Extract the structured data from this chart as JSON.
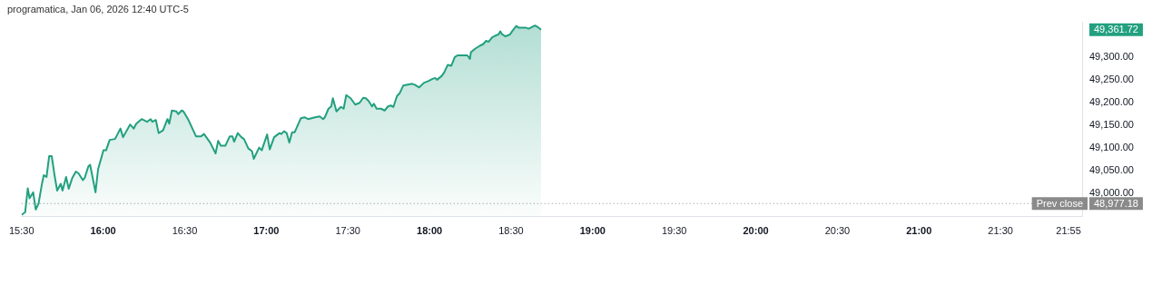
{
  "chart_data": {
    "type": "area",
    "title": "programatica, Jan 06, 2026 12:40 UTC-5",
    "x": [
      15.5,
      15.522,
      15.538,
      15.549,
      15.571,
      15.587,
      15.604,
      15.625,
      15.636,
      15.653,
      15.669,
      15.685,
      15.702,
      15.718,
      15.74,
      15.751,
      15.773,
      15.789,
      15.811,
      15.833,
      15.849,
      15.876,
      15.887,
      15.909,
      15.92,
      15.936,
      15.953,
      15.969,
      16.002,
      16.018,
      16.04,
      16.073,
      16.106,
      16.122,
      16.165,
      16.187,
      16.203,
      16.236,
      16.269,
      16.291,
      16.302,
      16.323,
      16.34,
      16.367,
      16.394,
      16.405,
      16.421,
      16.449,
      16.46,
      16.481,
      16.492,
      16.52,
      16.569,
      16.601,
      16.618,
      16.656,
      16.689,
      16.705,
      16.721,
      16.749,
      16.776,
      16.792,
      16.803,
      16.825,
      16.847,
      16.863,
      16.89,
      16.912,
      16.923,
      16.956,
      16.972,
      17.005,
      17.021,
      17.048,
      17.081,
      17.092,
      17.108,
      17.125,
      17.141,
      17.158,
      17.174,
      17.212,
      17.234,
      17.256,
      17.299,
      17.327,
      17.348,
      17.359,
      17.381,
      17.398,
      17.408,
      17.43,
      17.457,
      17.474,
      17.49,
      17.517,
      17.545,
      17.572,
      17.594,
      17.61,
      17.627,
      17.648,
      17.659,
      17.676,
      17.703,
      17.725,
      17.746,
      17.763,
      17.779,
      17.801,
      17.817,
      17.839,
      17.866,
      17.894,
      17.91,
      17.937,
      17.965,
      17.992,
      18.019,
      18.035,
      18.046,
      18.074,
      18.09,
      18.112,
      18.134,
      18.155,
      18.172,
      18.194,
      18.215,
      18.232,
      18.248,
      18.254,
      18.281,
      18.308,
      18.33,
      18.346,
      18.363,
      18.384,
      18.406,
      18.423,
      18.434,
      18.444,
      18.466,
      18.493,
      18.51,
      18.532,
      18.548,
      18.564,
      18.592,
      18.608,
      18.63,
      18.646,
      18.662,
      18.684
    ],
    "series": [
      {
        "color": "#22a07f",
        "values": [
          48952,
          48958,
          49011,
          48989,
          49002,
          48964,
          48977,
          49021,
          49040,
          49036,
          49082,
          49082,
          49040,
          49006,
          49021,
          49006,
          49036,
          49010,
          49034,
          49048,
          49044,
          49029,
          49034,
          49059,
          49063,
          49034,
          49002,
          49053,
          49095,
          49095,
          49118,
          49120,
          49143,
          49124,
          49152,
          49143,
          49154,
          49164,
          49158,
          49164,
          49158,
          49162,
          49133,
          49139,
          49164,
          49154,
          49183,
          49181,
          49175,
          49183,
          49181,
          49164,
          49126,
          49126,
          49131,
          49112,
          49088,
          49116,
          49105,
          49105,
          49126,
          49126,
          49114,
          49133,
          49124,
          49120,
          49099,
          49093,
          49076,
          49101,
          49095,
          49130,
          49097,
          49124,
          49133,
          49131,
          49137,
          49133,
          49112,
          49135,
          49135,
          49166,
          49168,
          49164,
          49168,
          49170,
          49164,
          49168,
          49187,
          49192,
          49210,
          49181,
          49191,
          49187,
          49217,
          49210,
          49196,
          49200,
          49211,
          49210,
          49204,
          49192,
          49198,
          49187,
          49187,
          49183,
          49192,
          49194,
          49191,
          49215,
          49221,
          49238,
          49240,
          49242,
          49240,
          49234,
          49244,
          49248,
          49253,
          49255,
          49251,
          49259,
          49267,
          49284,
          49282,
          49301,
          49305,
          49305,
          49305,
          49305,
          49297,
          49312,
          49320,
          49326,
          49330,
          49337,
          49335,
          49345,
          49349,
          49351,
          49358,
          49352,
          49347,
          49351,
          49360,
          49370,
          49366,
          49366,
          49366,
          49364,
          49368,
          49371,
          49368,
          49361.72
        ]
      }
    ],
    "xlim": [
      15.5,
      22.0
    ],
    "xticks": [
      {
        "value": 15.5,
        "label": "15:30"
      },
      {
        "value": 16,
        "label": "16:00"
      },
      {
        "value": 16.5,
        "label": "16:30"
      },
      {
        "value": 17,
        "label": "17:00"
      },
      {
        "value": 17.5,
        "label": "17:30"
      },
      {
        "value": 18,
        "label": "18:00"
      },
      {
        "value": 18.5,
        "label": "18:30"
      },
      {
        "value": 19,
        "label": "19:00"
      },
      {
        "value": 19.5,
        "label": "19:30"
      },
      {
        "value": 20,
        "label": "20:00"
      },
      {
        "value": 20.5,
        "label": "20:30"
      },
      {
        "value": 21,
        "label": "21:00"
      },
      {
        "value": 21.5,
        "label": "21:30"
      },
      {
        "value": 21.9167,
        "label": "21:55"
      }
    ],
    "ylim": [
      48948,
      49378
    ],
    "yticks": [
      {
        "value": 49000,
        "label": "49,000.00"
      },
      {
        "value": 49050,
        "label": "49,050.00"
      },
      {
        "value": 49100,
        "label": "49,100.00"
      },
      {
        "value": 49150,
        "label": "49,150.00"
      },
      {
        "value": 49200,
        "label": "49,200.00"
      },
      {
        "value": 49250,
        "label": "49,250.00"
      },
      {
        "value": 49300,
        "label": "49,300.00"
      }
    ],
    "ref_lines": [
      {
        "axis": "y",
        "value": 48977.18,
        "label": "Prev close",
        "color": "#8a8a8a",
        "line_style": "dotted"
      }
    ],
    "annotations": [
      "49,361.72",
      "48,977.18"
    ],
    "grid": false,
    "legend": false,
    "marker": "none",
    "line_style": "solid"
  }
}
